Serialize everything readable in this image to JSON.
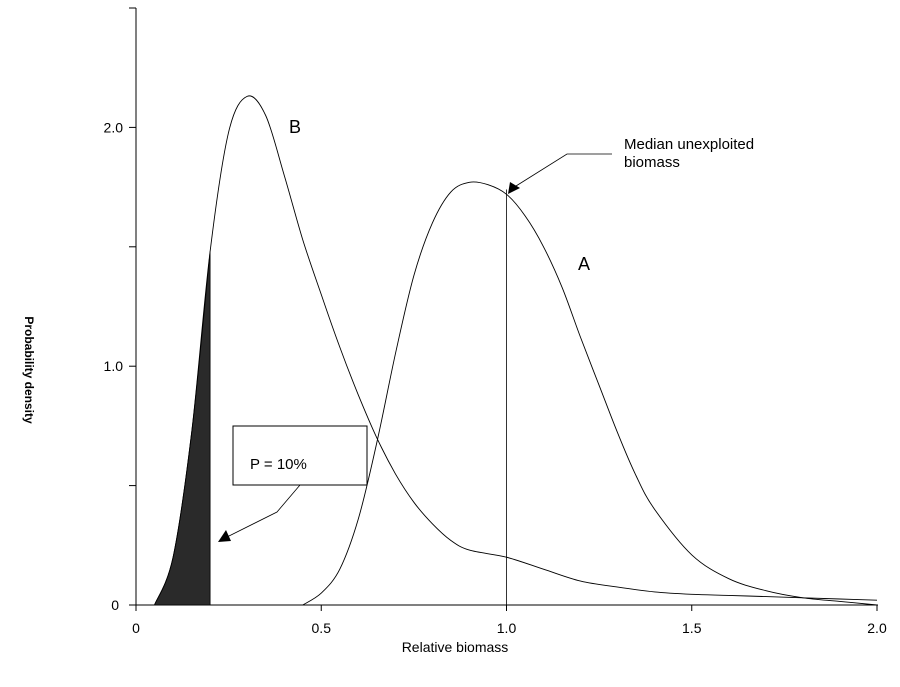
{
  "chart_data": {
    "type": "line",
    "title": "",
    "xlabel": "Relative biomass",
    "ylabel": "Probability density",
    "xlim": [
      0,
      2.0
    ],
    "ylim": [
      0,
      2.5
    ],
    "grid": false,
    "xticks": [
      {
        "value": 0,
        "label": "0"
      },
      {
        "value": 0.5,
        "label": "0.5"
      },
      {
        "value": 1.0,
        "label": "1.0"
      },
      {
        "value": 1.5,
        "label": "1.5"
      },
      {
        "value": 2.0,
        "label": "2.0"
      }
    ],
    "yticks": [
      {
        "value": 0,
        "label": "0"
      },
      {
        "value": 0.5,
        "label": ""
      },
      {
        "value": 1.0,
        "label": "1.0"
      },
      {
        "value": 1.5,
        "label": ""
      },
      {
        "value": 2.0,
        "label": "2.0"
      },
      {
        "value": 2.5,
        "label": ""
      }
    ],
    "series": [
      {
        "name": "A",
        "x": [
          0.45,
          0.5,
          0.55,
          0.6,
          0.65,
          0.7,
          0.75,
          0.8,
          0.85,
          0.9,
          0.95,
          1.0,
          1.05,
          1.1,
          1.15,
          1.2,
          1.25,
          1.3,
          1.35,
          1.4,
          1.5,
          1.6,
          1.7,
          1.8,
          1.9,
          2.0
        ],
        "y": [
          0.0,
          0.05,
          0.15,
          0.36,
          0.68,
          1.05,
          1.38,
          1.6,
          1.73,
          1.77,
          1.76,
          1.72,
          1.63,
          1.5,
          1.33,
          1.12,
          0.92,
          0.72,
          0.54,
          0.4,
          0.21,
          0.11,
          0.06,
          0.03,
          0.015,
          0.0
        ]
      },
      {
        "name": "B",
        "x": [
          0.05,
          0.1,
          0.15,
          0.2,
          0.25,
          0.3,
          0.35,
          0.4,
          0.45,
          0.5,
          0.55,
          0.6,
          0.65,
          0.7,
          0.75,
          0.8,
          0.85,
          0.9,
          1.0,
          1.1,
          1.2,
          1.3,
          1.4,
          1.5,
          1.6,
          1.7,
          1.8,
          1.9,
          2.0
        ],
        "y": [
          0.0,
          0.2,
          0.72,
          1.48,
          1.98,
          2.13,
          2.05,
          1.8,
          1.53,
          1.3,
          1.08,
          0.88,
          0.7,
          0.55,
          0.43,
          0.34,
          0.27,
          0.23,
          0.2,
          0.15,
          0.1,
          0.075,
          0.055,
          0.045,
          0.04,
          0.035,
          0.03,
          0.025,
          0.02
        ]
      }
    ],
    "shaded_region": {
      "series": "B",
      "x_from": 0.05,
      "x_to": 0.2,
      "label": "P = 10%"
    },
    "median_line": {
      "x": 1.0,
      "y_top": 1.74,
      "label_line1": "Median unexploited",
      "label_line2": "biomass"
    },
    "series_labels": [
      {
        "text": "B",
        "x": 0.44,
        "y": 2.0
      },
      {
        "text": "A",
        "x": 1.2,
        "y": 1.4
      }
    ]
  }
}
